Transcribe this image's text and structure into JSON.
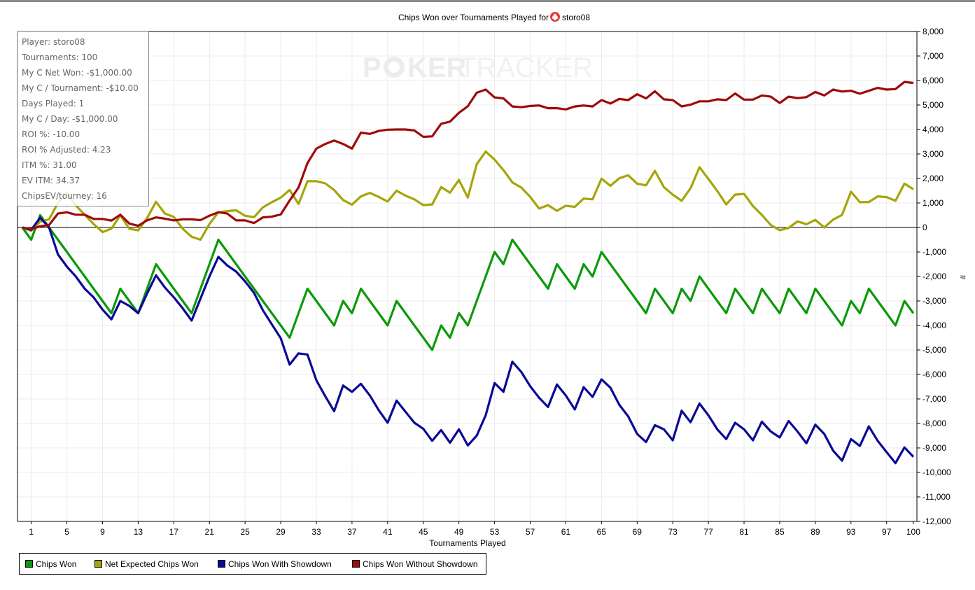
{
  "chart_data": {
    "type": "line",
    "title": "Chips Won over Tournaments Played for",
    "title_player": "storo08",
    "title_icon": "pokerstars-spade-icon",
    "watermark": "POKERTRACKER",
    "xlabel": "Tournaments Played",
    "ylabel": "#",
    "xlim": [
      0,
      100
    ],
    "ylim": [
      -12000,
      8000
    ],
    "x_ticks": [
      1,
      5,
      9,
      13,
      17,
      21,
      25,
      29,
      33,
      37,
      41,
      45,
      49,
      53,
      57,
      61,
      65,
      69,
      73,
      77,
      81,
      85,
      89,
      93,
      97,
      100
    ],
    "y_ticks": [
      8000,
      7000,
      6000,
      5000,
      4000,
      3000,
      2000,
      1000,
      0,
      -1000,
      -2000,
      -3000,
      -4000,
      -5000,
      -6000,
      -7000,
      -8000,
      -9000,
      -10000,
      -11000,
      -12000
    ],
    "y_tick_labels": [
      "8,000",
      "7,000",
      "6,000",
      "5,000",
      "4,000",
      "3,000",
      "2,000",
      "1,000",
      "0",
      "-1,000",
      "-2,000",
      "-3,000",
      "-4,000",
      "-5,000",
      "-6,000",
      "-7,000",
      "-8,000",
      "-9,000",
      "-10,000",
      "-11,000",
      "-12,000"
    ],
    "y_axis_side": "right",
    "grid": true,
    "legend_placement": "bottom",
    "series": [
      {
        "name": "Chips Won",
        "color": "#0b9a0b",
        "values": [
          0,
          -500,
          500,
          0,
          -500,
          -1000,
          -1500,
          -2000,
          -2500,
          -3000,
          -3500,
          -2500,
          -3000,
          -3500,
          -2500,
          -1500,
          -2000,
          -2500,
          -3000,
          -3500,
          -2500,
          -1500,
          -500,
          -1000,
          -1500,
          -2000,
          -2500,
          -3000,
          -3500,
          -4000,
          -4500,
          -3500,
          -2500,
          -3000,
          -3500,
          -4000,
          -3000,
          -3500,
          -2500,
          -3000,
          -3500,
          -4000,
          -3000,
          -3500,
          -4000,
          -4500,
          -5000,
          -4000,
          -4500,
          -3500,
          -4000,
          -3000,
          -2000,
          -1000,
          -1500,
          -500,
          -1000,
          -1500,
          -2000,
          -2500,
          -1500,
          -2000,
          -2500,
          -1500,
          -2000,
          -1000,
          -1500,
          -2000,
          -2500,
          -3000,
          -3500,
          -2500,
          -3000,
          -3500,
          -2500,
          -3000,
          -2000,
          -2500,
          -3000,
          -3500,
          -2500,
          -3000,
          -3500,
          -2500,
          -3000,
          -3500,
          -2500,
          -3000,
          -3500,
          -2500,
          -3000,
          -3500,
          -4000,
          -3000,
          -3500,
          -2500,
          -3000,
          -3500,
          -4000,
          -3000,
          -3500
        ]
      },
      {
        "name": "Net Expected Chips Won",
        "color": "#a5a50a",
        "values": [
          0,
          -140,
          240,
          330,
          1000,
          1430,
          900,
          520,
          140,
          -190,
          -50,
          500,
          -50,
          -120,
          380,
          1050,
          570,
          430,
          -50,
          -380,
          -500,
          140,
          620,
          670,
          700,
          480,
          420,
          820,
          1030,
          1220,
          1530,
          960,
          1890,
          1890,
          1800,
          1530,
          1120,
          930,
          1270,
          1410,
          1250,
          1060,
          1500,
          1300,
          1150,
          910,
          940,
          1650,
          1420,
          1940,
          1220,
          2580,
          3100,
          2770,
          2340,
          1840,
          1630,
          1250,
          770,
          910,
          680,
          890,
          840,
          1180,
          1150,
          1990,
          1700,
          2010,
          2130,
          1790,
          1720,
          2310,
          1650,
          1340,
          1090,
          1600,
          2460,
          1980,
          1490,
          940,
          1340,
          1370,
          870,
          510,
          100,
          -110,
          -20,
          250,
          130,
          310,
          0,
          320,
          510,
          1460,
          1030,
          1040,
          1270,
          1240,
          1090,
          1790,
          1560
        ]
      },
      {
        "name": "Chips Won With Showdown",
        "color": "#0a0a96",
        "values": [
          0,
          -100,
          400,
          0,
          -1100,
          -1600,
          -2000,
          -2500,
          -2850,
          -3350,
          -3750,
          -3000,
          -3200,
          -3500,
          -2700,
          -1950,
          -2450,
          -2850,
          -3300,
          -3800,
          -2900,
          -2000,
          -1200,
          -1550,
          -1800,
          -2200,
          -2670,
          -3380,
          -3950,
          -4520,
          -5600,
          -5140,
          -5190,
          -6240,
          -6890,
          -7500,
          -6450,
          -6710,
          -6380,
          -6860,
          -7460,
          -7970,
          -7070,
          -7520,
          -7970,
          -8220,
          -8710,
          -8270,
          -8790,
          -8240,
          -8900,
          -8500,
          -7670,
          -6350,
          -6710,
          -5480,
          -5900,
          -6480,
          -6950,
          -7330,
          -6410,
          -6860,
          -7430,
          -6520,
          -6920,
          -6200,
          -6540,
          -7240,
          -7710,
          -8430,
          -8760,
          -8070,
          -8240,
          -8690,
          -7480,
          -7950,
          -7190,
          -7670,
          -8240,
          -8640,
          -7970,
          -8240,
          -8690,
          -7930,
          -8330,
          -8570,
          -7900,
          -8330,
          -8810,
          -8050,
          -8430,
          -9110,
          -9520,
          -8640,
          -8920,
          -8120,
          -8710,
          -9170,
          -9620,
          -8980,
          -9360
        ]
      },
      {
        "name": "Chips Won Without Showdown",
        "color": "#a00a0a",
        "values": [
          0,
          -70,
          50,
          100,
          570,
          620,
          520,
          520,
          350,
          350,
          280,
          520,
          160,
          70,
          290,
          410,
          360,
          290,
          330,
          330,
          300,
          480,
          620,
          570,
          290,
          290,
          180,
          410,
          440,
          530,
          1100,
          1630,
          2630,
          3220,
          3410,
          3550,
          3410,
          3220,
          3870,
          3820,
          3940,
          3990,
          4000,
          4000,
          3960,
          3700,
          3720,
          4230,
          4320,
          4680,
          4950,
          5500,
          5630,
          5310,
          5270,
          4940,
          4910,
          4960,
          4980,
          4870,
          4870,
          4820,
          4940,
          4980,
          4940,
          5200,
          5060,
          5250,
          5200,
          5440,
          5270,
          5560,
          5230,
          5200,
          4940,
          5010,
          5150,
          5150,
          5230,
          5200,
          5470,
          5220,
          5220,
          5390,
          5340,
          5080,
          5340,
          5280,
          5320,
          5530,
          5390,
          5630,
          5550,
          5580,
          5460,
          5580,
          5700,
          5630,
          5650,
          5940,
          5900
        ]
      }
    ]
  },
  "stats": [
    "Player: storo08",
    "Tournaments: 100",
    "My C Net Won: -$1,000.00",
    "My C / Tournament: -$10.00",
    "Days Played: 1",
    "My C / Day: -$1,000.00",
    "ROI %: -10.00",
    "ROI % Adjusted: 4.23",
    "ITM %: 31.00",
    "EV ITM: 34.37",
    "ChipsEV/tourney: 16"
  ]
}
